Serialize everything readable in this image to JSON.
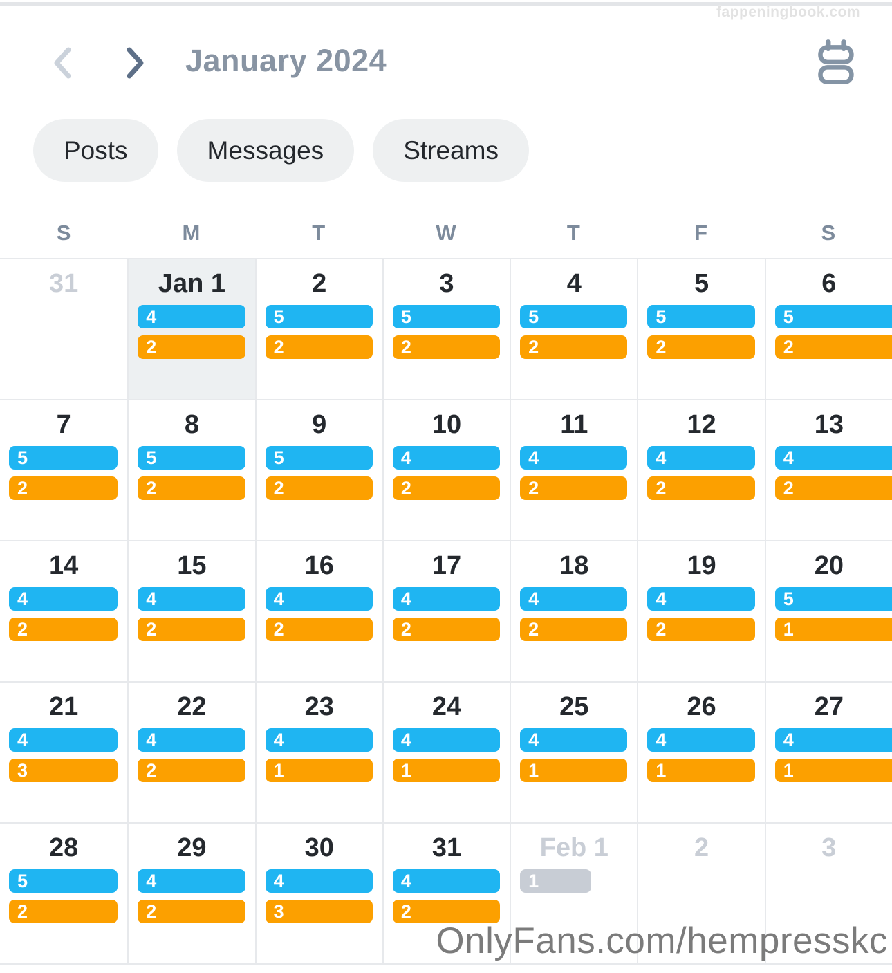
{
  "window": {
    "top_watermark": "fappeningbook.com",
    "bottom_watermark": "OnlyFans.com/hempresskc"
  },
  "header": {
    "title": "January 2024"
  },
  "filters": {
    "posts": "Posts",
    "messages": "Messages",
    "streams": "Streams"
  },
  "weekdays": [
    "S",
    "M",
    "T",
    "W",
    "T",
    "F",
    "S"
  ],
  "legend_colors": {
    "posts": "#1FB5F2",
    "messages": "#FCA000",
    "inactive": "#C8CDD5"
  },
  "ui_colors": {
    "accent_text": "#8894A3",
    "grid_line": "#E7E9EC",
    "today_background": "#EDF0F2",
    "muted_text": "#C9CED6"
  },
  "calendar": {
    "month_label": "January 2024",
    "days": [
      {
        "label": "31",
        "muted": true,
        "badges": []
      },
      {
        "label": "Jan 1",
        "today": true,
        "badges": [
          {
            "type": "posts",
            "count": 4
          },
          {
            "type": "messages",
            "count": 2
          }
        ]
      },
      {
        "label": "2",
        "badges": [
          {
            "type": "posts",
            "count": 5
          },
          {
            "type": "messages",
            "count": 2
          }
        ]
      },
      {
        "label": "3",
        "badges": [
          {
            "type": "posts",
            "count": 5
          },
          {
            "type": "messages",
            "count": 2
          }
        ]
      },
      {
        "label": "4",
        "badges": [
          {
            "type": "posts",
            "count": 5
          },
          {
            "type": "messages",
            "count": 2
          }
        ]
      },
      {
        "label": "5",
        "badges": [
          {
            "type": "posts",
            "count": 5
          },
          {
            "type": "messages",
            "count": 2
          }
        ]
      },
      {
        "label": "6",
        "badges": [
          {
            "type": "posts",
            "count": 5
          },
          {
            "type": "messages",
            "count": 2
          }
        ]
      },
      {
        "label": "7",
        "badges": [
          {
            "type": "posts",
            "count": 5
          },
          {
            "type": "messages",
            "count": 2
          }
        ]
      },
      {
        "label": "8",
        "badges": [
          {
            "type": "posts",
            "count": 5
          },
          {
            "type": "messages",
            "count": 2
          }
        ]
      },
      {
        "label": "9",
        "badges": [
          {
            "type": "posts",
            "count": 5
          },
          {
            "type": "messages",
            "count": 2
          }
        ]
      },
      {
        "label": "10",
        "badges": [
          {
            "type": "posts",
            "count": 4
          },
          {
            "type": "messages",
            "count": 2
          }
        ]
      },
      {
        "label": "11",
        "badges": [
          {
            "type": "posts",
            "count": 4
          },
          {
            "type": "messages",
            "count": 2
          }
        ]
      },
      {
        "label": "12",
        "badges": [
          {
            "type": "posts",
            "count": 4
          },
          {
            "type": "messages",
            "count": 2
          }
        ]
      },
      {
        "label": "13",
        "badges": [
          {
            "type": "posts",
            "count": 4
          },
          {
            "type": "messages",
            "count": 2
          }
        ]
      },
      {
        "label": "14",
        "badges": [
          {
            "type": "posts",
            "count": 4
          },
          {
            "type": "messages",
            "count": 2
          }
        ]
      },
      {
        "label": "15",
        "badges": [
          {
            "type": "posts",
            "count": 4
          },
          {
            "type": "messages",
            "count": 2
          }
        ]
      },
      {
        "label": "16",
        "badges": [
          {
            "type": "posts",
            "count": 4
          },
          {
            "type": "messages",
            "count": 2
          }
        ]
      },
      {
        "label": "17",
        "badges": [
          {
            "type": "posts",
            "count": 4
          },
          {
            "type": "messages",
            "count": 2
          }
        ]
      },
      {
        "label": "18",
        "badges": [
          {
            "type": "posts",
            "count": 4
          },
          {
            "type": "messages",
            "count": 2
          }
        ]
      },
      {
        "label": "19",
        "badges": [
          {
            "type": "posts",
            "count": 4
          },
          {
            "type": "messages",
            "count": 2
          }
        ]
      },
      {
        "label": "20",
        "badges": [
          {
            "type": "posts",
            "count": 5
          },
          {
            "type": "messages",
            "count": 1
          }
        ]
      },
      {
        "label": "21",
        "badges": [
          {
            "type": "posts",
            "count": 4
          },
          {
            "type": "messages",
            "count": 3
          }
        ]
      },
      {
        "label": "22",
        "badges": [
          {
            "type": "posts",
            "count": 4
          },
          {
            "type": "messages",
            "count": 2
          }
        ]
      },
      {
        "label": "23",
        "badges": [
          {
            "type": "posts",
            "count": 4
          },
          {
            "type": "messages",
            "count": 1
          }
        ]
      },
      {
        "label": "24",
        "badges": [
          {
            "type": "posts",
            "count": 4
          },
          {
            "type": "messages",
            "count": 1
          }
        ]
      },
      {
        "label": "25",
        "badges": [
          {
            "type": "posts",
            "count": 4
          },
          {
            "type": "messages",
            "count": 1
          }
        ]
      },
      {
        "label": "26",
        "badges": [
          {
            "type": "posts",
            "count": 4
          },
          {
            "type": "messages",
            "count": 1
          }
        ]
      },
      {
        "label": "27",
        "badges": [
          {
            "type": "posts",
            "count": 4
          },
          {
            "type": "messages",
            "count": 1
          }
        ]
      },
      {
        "label": "28",
        "badges": [
          {
            "type": "posts",
            "count": 5
          },
          {
            "type": "messages",
            "count": 2
          }
        ]
      },
      {
        "label": "29",
        "badges": [
          {
            "type": "posts",
            "count": 4
          },
          {
            "type": "messages",
            "count": 2
          }
        ]
      },
      {
        "label": "30",
        "badges": [
          {
            "type": "posts",
            "count": 4
          },
          {
            "type": "messages",
            "count": 3
          }
        ]
      },
      {
        "label": "31",
        "badges": [
          {
            "type": "posts",
            "count": 4
          },
          {
            "type": "messages",
            "count": 2
          }
        ]
      },
      {
        "label": "Feb 1",
        "muted": true,
        "badges": [
          {
            "type": "inactive",
            "count": 1
          }
        ]
      },
      {
        "label": "2",
        "muted": true,
        "badges": []
      },
      {
        "label": "3",
        "muted": true,
        "badges": []
      }
    ]
  }
}
